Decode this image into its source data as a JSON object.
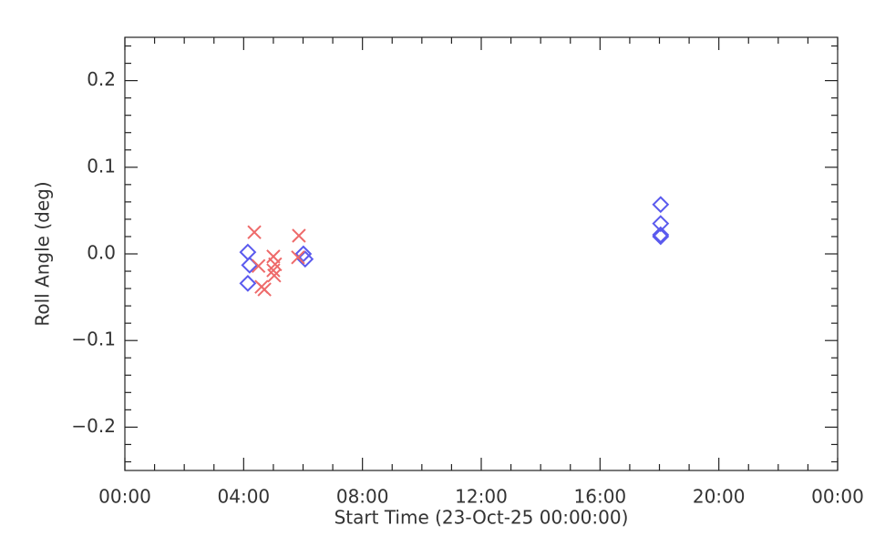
{
  "chart_data": {
    "type": "scatter",
    "x_label": "Start Time (23-Oct-25 00:00:00)",
    "y_label": "Roll Angle (deg)",
    "xlim": [
      0,
      24
    ],
    "xticks": [
      {
        "value": 0,
        "label": "00:00"
      },
      {
        "value": 4,
        "label": "04:00"
      },
      {
        "value": 8,
        "label": "08:00"
      },
      {
        "value": 12,
        "label": "12:00"
      },
      {
        "value": 16,
        "label": "16:00"
      },
      {
        "value": 20,
        "label": "20:00"
      },
      {
        "value": 24,
        "label": "00:00"
      }
    ],
    "ylim": [
      -0.25,
      0.25
    ],
    "yticks": [
      {
        "value": -0.2,
        "label": "−0.2"
      },
      {
        "value": -0.1,
        "label": "−0.1"
      },
      {
        "value": 0,
        "label": "0.0"
      },
      0.1,
      0.2
    ],
    "series": [
      {
        "marker": "diamond",
        "color": "#5a5aee",
        "x": [
          4.14,
          4.2,
          4.14,
          6.01,
          6.07,
          18.04,
          18.04,
          18.04,
          18.04
        ],
        "values": [
          0.002,
          -0.013,
          -0.034,
          0.0,
          -0.006,
          0.057,
          0.035,
          0.022,
          0.02
        ]
      },
      {
        "marker": "x",
        "color": "#ee6a6a",
        "x": [
          4.36,
          4.5,
          4.6,
          4.7,
          5.0,
          5.06,
          5.0,
          5.03,
          5.86,
          5.83
        ],
        "values": [
          0.025,
          -0.014,
          -0.038,
          -0.041,
          -0.003,
          -0.012,
          -0.019,
          -0.025,
          0.021,
          -0.004
        ]
      }
    ]
  }
}
